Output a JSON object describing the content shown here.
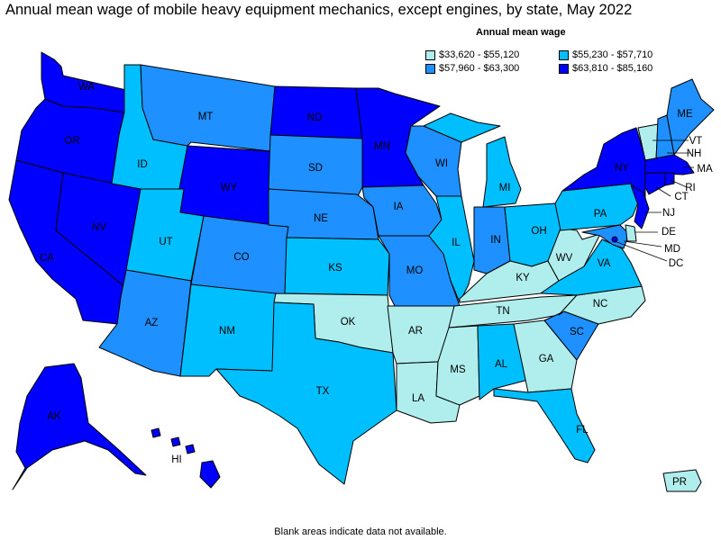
{
  "title": "Annual mean wage of mobile heavy equipment mechanics, except engines, by state, May 2022",
  "legend": {
    "title": "Annual mean wage",
    "ranges": [
      {
        "label": "$33,620 - $55,120",
        "color": "#b0eeee"
      },
      {
        "label": "$55,230 - $57,710",
        "color": "#00bfff"
      },
      {
        "label": "$57,960 - $63,300",
        "color": "#1e90ff"
      },
      {
        "label": "$63,810 - $85,160",
        "color": "#0000ff"
      }
    ]
  },
  "footnote": "Blank areas indicate data not available.",
  "states": {
    "WA": "$63,810 - $85,160",
    "OR": "$63,810 - $85,160",
    "CA": "$63,810 - $85,160",
    "NV": "$63,810 - $85,160",
    "ID": "$55,230 - $57,710",
    "MT": "$57,960 - $63,300",
    "WY": "$63,810 - $85,160",
    "UT": "$55,230 - $57,710",
    "AZ": "$57,960 - $63,300",
    "CO": "$57,960 - $63,300",
    "NM": "$55,230 - $57,710",
    "ND": "$63,810 - $85,160",
    "SD": "$57,960 - $63,300",
    "NE": "$57,960 - $63,300",
    "KS": "$55,230 - $57,710",
    "OK": "$33,620 - $55,120",
    "TX": "$55,230 - $57,710",
    "MN": "$63,810 - $85,160",
    "IA": "$57,960 - $63,300",
    "MO": "$57,960 - $63,300",
    "AR": "$33,620 - $55,120",
    "LA": "$33,620 - $55,120",
    "WI": "$57,960 - $63,300",
    "IL": "$55,230 - $57,710",
    "MI": "$55,230 - $57,710",
    "IN": "$57,960 - $63,300",
    "OH": "$55,230 - $57,710",
    "KY": "$33,620 - $55,120",
    "TN": "$33,620 - $55,120",
    "MS": "$33,620 - $55,120",
    "AL": "$55,230 - $57,710",
    "GA": "$33,620 - $55,120",
    "FL": "$55,230 - $57,710",
    "SC": "$57,960 - $63,300",
    "NC": "$33,620 - $55,120",
    "VA": "$55,230 - $57,710",
    "WV": "$33,620 - $55,120",
    "PA": "$55,230 - $57,710",
    "NY": "$63,810 - $85,160",
    "VT": "$33,620 - $55,120",
    "NH": "$57,960 - $63,300",
    "ME": "$57,960 - $63,300",
    "MA": "$63,810 - $85,160",
    "RI": "$63,810 - $85,160",
    "CT": "$63,810 - $85,160",
    "NJ": "$63,810 - $85,160",
    "DE": "$33,620 - $55,120",
    "MD": "$57,960 - $63,300",
    "DC": "$63,810 - $85,160",
    "AK": "$63,810 - $85,160",
    "HI": "$63,810 - $85,160",
    "PR": "$33,620 - $55,120"
  }
}
